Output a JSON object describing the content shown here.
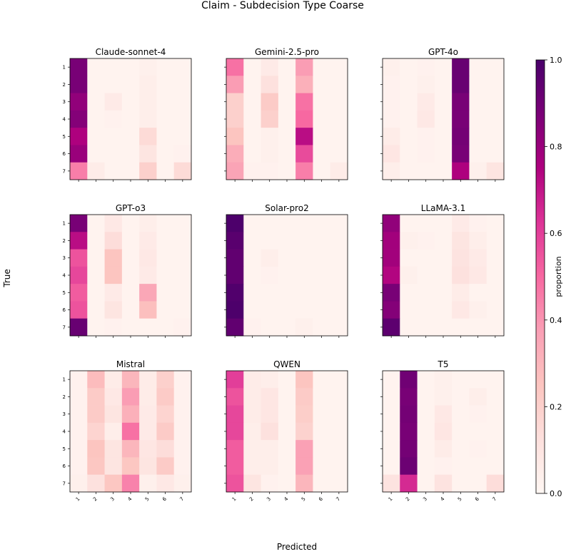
{
  "chart_data": {
    "type": "heatmap",
    "title": "Claim - Subdecision Type Coarse",
    "xlabel": "Predicted",
    "ylabel": "True",
    "categories": [
      "1",
      "2",
      "3",
      "4",
      "5",
      "6",
      "7"
    ],
    "colorbar": {
      "label": "proportion",
      "range": [
        0.0,
        1.0
      ],
      "ticks": [
        "0.0",
        "0.2",
        "0.4",
        "0.6",
        "0.8",
        "1.0"
      ],
      "colormap": "RdPu",
      "stops": [
        "#fff7f3",
        "#fde0dd",
        "#fcc5c0",
        "#fa9fb5",
        "#f768a1",
        "#dd3497",
        "#ae017e",
        "#7a0177",
        "#49006a"
      ]
    },
    "panels": [
      {
        "title": "Claude-sonnet-4",
        "matrix": [
          [
            0.88,
            0.02,
            0.02,
            0.02,
            0.04,
            0.02,
            0.02
          ],
          [
            0.88,
            0.02,
            0.02,
            0.02,
            0.05,
            0.02,
            0.02
          ],
          [
            0.82,
            0.02,
            0.07,
            0.02,
            0.05,
            0.02,
            0.02
          ],
          [
            0.85,
            0.02,
            0.03,
            0.02,
            0.05,
            0.02,
            0.02
          ],
          [
            0.75,
            0.02,
            0.02,
            0.02,
            0.15,
            0.02,
            0.02
          ],
          [
            0.8,
            0.02,
            0.02,
            0.02,
            0.1,
            0.02,
            0.03
          ],
          [
            0.45,
            0.06,
            0.02,
            0.02,
            0.2,
            0.02,
            0.15
          ]
        ]
      },
      {
        "title": "Gemini-2.5-pro",
        "matrix": [
          [
            0.48,
            0.02,
            0.07,
            0.02,
            0.38,
            0.02,
            0.02
          ],
          [
            0.38,
            0.02,
            0.12,
            0.02,
            0.32,
            0.02,
            0.02
          ],
          [
            0.2,
            0.02,
            0.22,
            0.02,
            0.48,
            0.02,
            0.02
          ],
          [
            0.2,
            0.02,
            0.2,
            0.02,
            0.5,
            0.02,
            0.02
          ],
          [
            0.25,
            0.02,
            0.04,
            0.02,
            0.72,
            0.02,
            0.02
          ],
          [
            0.33,
            0.02,
            0.04,
            0.02,
            0.57,
            0.02,
            0.02
          ],
          [
            0.36,
            0.03,
            0.03,
            0.02,
            0.45,
            0.02,
            0.06
          ]
        ]
      },
      {
        "title": "GPT-4o",
        "matrix": [
          [
            0.04,
            0.02,
            0.03,
            0.02,
            0.92,
            0.02,
            0.02
          ],
          [
            0.03,
            0.02,
            0.04,
            0.02,
            0.92,
            0.02,
            0.02
          ],
          [
            0.03,
            0.02,
            0.07,
            0.02,
            0.88,
            0.02,
            0.02
          ],
          [
            0.03,
            0.02,
            0.08,
            0.02,
            0.88,
            0.02,
            0.02
          ],
          [
            0.06,
            0.02,
            0.03,
            0.02,
            0.89,
            0.02,
            0.02
          ],
          [
            0.09,
            0.02,
            0.03,
            0.02,
            0.88,
            0.02,
            0.02
          ],
          [
            0.05,
            0.02,
            0.02,
            0.02,
            0.75,
            0.04,
            0.1
          ]
        ]
      },
      {
        "title": "GPT-o3",
        "matrix": [
          [
            0.88,
            0.02,
            0.08,
            0.02,
            0.05,
            0.02,
            0.02
          ],
          [
            0.72,
            0.02,
            0.14,
            0.02,
            0.07,
            0.02,
            0.02
          ],
          [
            0.55,
            0.02,
            0.25,
            0.02,
            0.08,
            0.02,
            0.02
          ],
          [
            0.58,
            0.02,
            0.25,
            0.02,
            0.07,
            0.02,
            0.02
          ],
          [
            0.53,
            0.02,
            0.07,
            0.02,
            0.35,
            0.02,
            0.02
          ],
          [
            0.55,
            0.02,
            0.1,
            0.02,
            0.27,
            0.02,
            0.02
          ],
          [
            0.92,
            0.02,
            0.03,
            0.02,
            0.02,
            0.02,
            0.03
          ]
        ]
      },
      {
        "title": "Solar-pro2",
        "matrix": [
          [
            0.99,
            0.02,
            0.02,
            0.02,
            0.02,
            0.02,
            0.02
          ],
          [
            0.96,
            0.02,
            0.02,
            0.02,
            0.02,
            0.02,
            0.02
          ],
          [
            0.94,
            0.02,
            0.05,
            0.02,
            0.02,
            0.02,
            0.02
          ],
          [
            0.94,
            0.02,
            0.03,
            0.02,
            0.02,
            0.02,
            0.02
          ],
          [
            0.98,
            0.02,
            0.02,
            0.02,
            0.02,
            0.02,
            0.02
          ],
          [
            0.99,
            0.02,
            0.02,
            0.02,
            0.02,
            0.02,
            0.02
          ],
          [
            0.94,
            0.03,
            0.02,
            0.02,
            0.04,
            0.02,
            0.02
          ]
        ]
      },
      {
        "title": "LLaMA-3.1",
        "matrix": [
          [
            0.82,
            0.02,
            0.02,
            0.02,
            0.07,
            0.03,
            0.02
          ],
          [
            0.78,
            0.04,
            0.03,
            0.02,
            0.1,
            0.05,
            0.02
          ],
          [
            0.78,
            0.02,
            0.02,
            0.02,
            0.11,
            0.07,
            0.02
          ],
          [
            0.74,
            0.04,
            0.02,
            0.02,
            0.12,
            0.08,
            0.02
          ],
          [
            0.88,
            0.02,
            0.02,
            0.02,
            0.06,
            0.02,
            0.02
          ],
          [
            0.85,
            0.02,
            0.02,
            0.02,
            0.08,
            0.04,
            0.02
          ],
          [
            0.95,
            0.02,
            0.02,
            0.02,
            0.02,
            0.02,
            0.02
          ]
        ]
      },
      {
        "title": "Mistral",
        "matrix": [
          [
            0.03,
            0.28,
            0.06,
            0.3,
            0.06,
            0.2,
            0.03
          ],
          [
            0.03,
            0.22,
            0.08,
            0.38,
            0.06,
            0.22,
            0.03
          ],
          [
            0.03,
            0.22,
            0.1,
            0.32,
            0.07,
            0.18,
            0.03
          ],
          [
            0.03,
            0.18,
            0.05,
            0.48,
            0.07,
            0.22,
            0.03
          ],
          [
            0.03,
            0.25,
            0.1,
            0.3,
            0.09,
            0.14,
            0.03
          ],
          [
            0.03,
            0.24,
            0.1,
            0.24,
            0.1,
            0.22,
            0.03
          ],
          [
            0.04,
            0.12,
            0.24,
            0.44,
            0.04,
            0.08,
            0.04
          ]
        ]
      },
      {
        "title": "QWEN",
        "matrix": [
          [
            0.6,
            0.06,
            0.05,
            0.02,
            0.25,
            0.02,
            0.02
          ],
          [
            0.55,
            0.06,
            0.09,
            0.02,
            0.22,
            0.02,
            0.02
          ],
          [
            0.58,
            0.06,
            0.09,
            0.02,
            0.21,
            0.02,
            0.02
          ],
          [
            0.58,
            0.05,
            0.12,
            0.02,
            0.19,
            0.02,
            0.02
          ],
          [
            0.53,
            0.05,
            0.05,
            0.02,
            0.37,
            0.02,
            0.02
          ],
          [
            0.53,
            0.05,
            0.05,
            0.02,
            0.37,
            0.02,
            0.02
          ],
          [
            0.55,
            0.1,
            0.03,
            0.02,
            0.3,
            0.02,
            0.02
          ]
        ]
      },
      {
        "title": "T5",
        "matrix": [
          [
            0.02,
            0.9,
            0.02,
            0.04,
            0.02,
            0.02,
            0.02
          ],
          [
            0.02,
            0.88,
            0.02,
            0.04,
            0.02,
            0.05,
            0.02
          ],
          [
            0.02,
            0.89,
            0.02,
            0.08,
            0.02,
            0.03,
            0.02
          ],
          [
            0.02,
            0.88,
            0.02,
            0.09,
            0.02,
            0.02,
            0.02
          ],
          [
            0.02,
            0.89,
            0.02,
            0.06,
            0.02,
            0.03,
            0.02
          ],
          [
            0.02,
            0.91,
            0.02,
            0.03,
            0.02,
            0.02,
            0.02
          ],
          [
            0.11,
            0.65,
            0.02,
            0.11,
            0.02,
            0.02,
            0.14
          ]
        ]
      }
    ]
  }
}
